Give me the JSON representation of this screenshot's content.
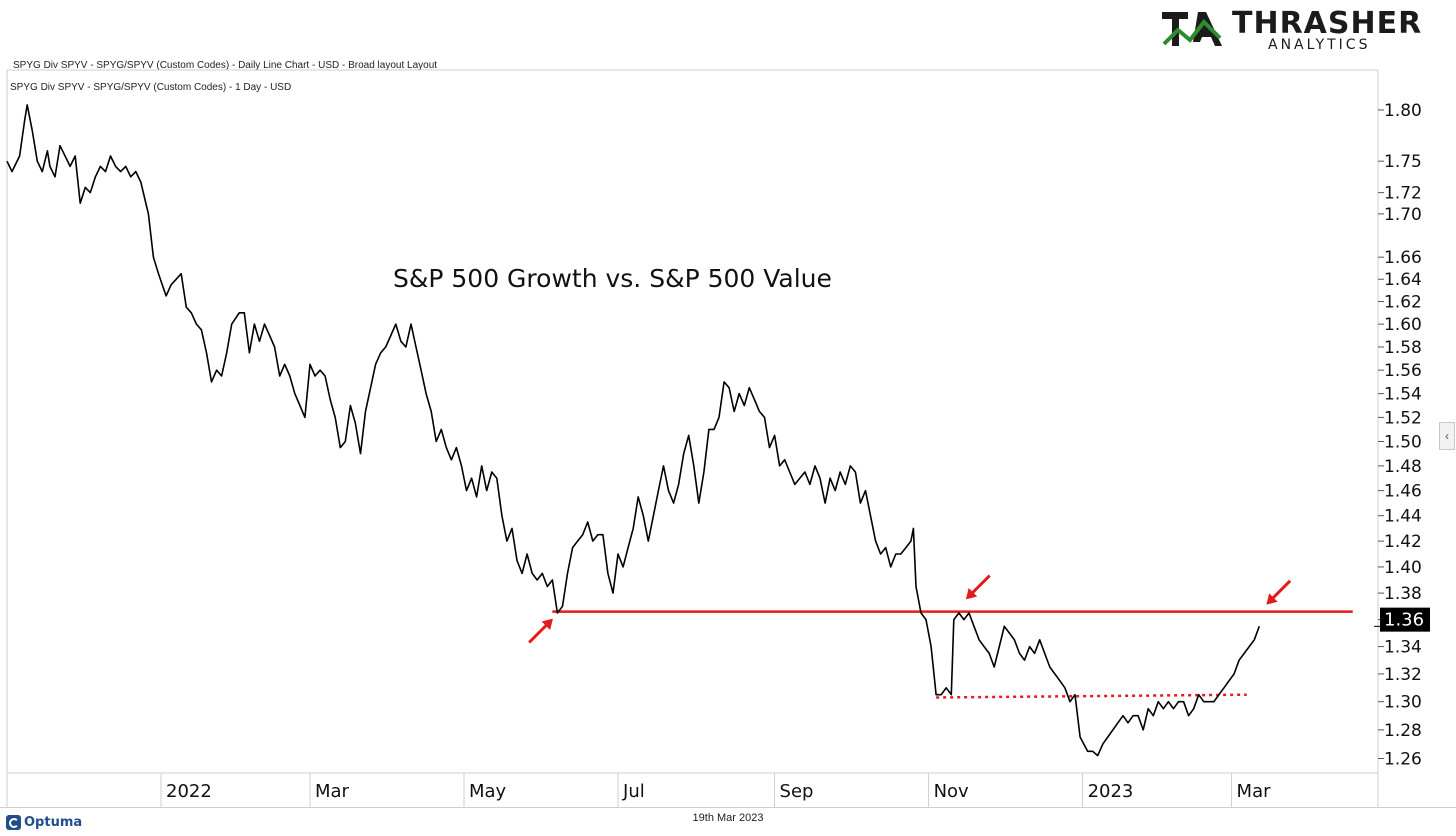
{
  "header": {
    "line1": "SPYG Div SPYV - SPYG/SPYV (Custom Codes) - Daily Line Chart - USD - Broad layout Layout",
    "line2": "SPYG Div SPYV - SPYG/SPYV (Custom Codes) - 1 Day - USD"
  },
  "logo": {
    "word": "THRASHER",
    "sub": "ANALYTICS",
    "colors": {
      "green": "#2e8b2e",
      "dark": "#1b1b1b"
    }
  },
  "footer": {
    "brand": "Optuma",
    "date": "19th Mar 2023"
  },
  "side_tab": {
    "glyph": "‹"
  },
  "chart_data": {
    "type": "line",
    "title": "S&P 500 Growth vs. S&P 500 Value",
    "y_scale": "log",
    "ylim": [
      1.25,
      1.84
    ],
    "yticks": [
      "1.80",
      "1.75",
      "1.72",
      "1.70",
      "1.66",
      "1.64",
      "1.62",
      "1.60",
      "1.58",
      "1.56",
      "1.54",
      "1.52",
      "1.50",
      "1.48",
      "1.46",
      "1.44",
      "1.42",
      "1.40",
      "1.38",
      "1.36",
      "1.34",
      "1.32",
      "1.30",
      "1.28",
      "1.26"
    ],
    "xlim": [
      "2021-11-01",
      "2023-04-28"
    ],
    "xtick_labels": [
      {
        "date": "2022-01-01",
        "label": "2022"
      },
      {
        "date": "2022-03-01",
        "label": "Mar"
      },
      {
        "date": "2022-05-01",
        "label": "May"
      },
      {
        "date": "2022-07-01",
        "label": "Jul"
      },
      {
        "date": "2022-09-01",
        "label": "Sep"
      },
      {
        "date": "2022-11-01",
        "label": "Nov"
      },
      {
        "date": "2023-01-01",
        "label": "2023"
      },
      {
        "date": "2023-03-01",
        "label": "Mar"
      }
    ],
    "last_value": "1.36",
    "colors": {
      "line": "#000000",
      "resistance": "#e31b1b",
      "arrow": "#e31b1b",
      "last_value_box": "#000000"
    },
    "series": [
      {
        "points": [
          [
            "2021-11-01",
            1.75
          ],
          [
            "2021-11-03",
            1.74
          ],
          [
            "2021-11-06",
            1.755
          ],
          [
            "2021-11-08",
            1.79
          ],
          [
            "2021-11-09",
            1.805
          ],
          [
            "2021-11-11",
            1.78
          ],
          [
            "2021-11-13",
            1.75
          ],
          [
            "2021-11-15",
            1.74
          ],
          [
            "2021-11-17",
            1.76
          ],
          [
            "2021-11-18",
            1.745
          ],
          [
            "2021-11-20",
            1.735
          ],
          [
            "2021-11-22",
            1.765
          ],
          [
            "2021-11-24",
            1.755
          ],
          [
            "2021-11-26",
            1.745
          ],
          [
            "2021-11-28",
            1.755
          ],
          [
            "2021-11-30",
            1.71
          ],
          [
            "2021-12-02",
            1.725
          ],
          [
            "2021-12-04",
            1.72
          ],
          [
            "2021-12-06",
            1.735
          ],
          [
            "2021-12-08",
            1.745
          ],
          [
            "2021-12-10",
            1.74
          ],
          [
            "2021-12-12",
            1.755
          ],
          [
            "2021-12-14",
            1.745
          ],
          [
            "2021-12-16",
            1.74
          ],
          [
            "2021-12-18",
            1.745
          ],
          [
            "2021-12-20",
            1.735
          ],
          [
            "2021-12-22",
            1.74
          ],
          [
            "2021-12-24",
            1.73
          ],
          [
            "2021-12-27",
            1.7
          ],
          [
            "2021-12-29",
            1.66
          ],
          [
            "2021-12-31",
            1.645
          ],
          [
            "2022-01-03",
            1.625
          ],
          [
            "2022-01-05",
            1.635
          ],
          [
            "2022-01-07",
            1.64
          ],
          [
            "2022-01-09",
            1.645
          ],
          [
            "2022-01-11",
            1.615
          ],
          [
            "2022-01-13",
            1.61
          ],
          [
            "2022-01-15",
            1.6
          ],
          [
            "2022-01-17",
            1.595
          ],
          [
            "2022-01-19",
            1.575
          ],
          [
            "2022-01-21",
            1.55
          ],
          [
            "2022-01-23",
            1.56
          ],
          [
            "2022-01-25",
            1.555
          ],
          [
            "2022-01-27",
            1.575
          ],
          [
            "2022-01-29",
            1.6
          ],
          [
            "2022-02-01",
            1.61
          ],
          [
            "2022-02-03",
            1.61
          ],
          [
            "2022-02-05",
            1.575
          ],
          [
            "2022-02-07",
            1.6
          ],
          [
            "2022-02-09",
            1.585
          ],
          [
            "2022-02-11",
            1.6
          ],
          [
            "2022-02-13",
            1.59
          ],
          [
            "2022-02-15",
            1.58
          ],
          [
            "2022-02-17",
            1.555
          ],
          [
            "2022-02-19",
            1.565
          ],
          [
            "2022-02-21",
            1.555
          ],
          [
            "2022-02-23",
            1.54
          ],
          [
            "2022-02-25",
            1.53
          ],
          [
            "2022-02-27",
            1.52
          ],
          [
            "2022-03-01",
            1.565
          ],
          [
            "2022-03-03",
            1.555
          ],
          [
            "2022-03-05",
            1.56
          ],
          [
            "2022-03-07",
            1.555
          ],
          [
            "2022-03-09",
            1.535
          ],
          [
            "2022-03-11",
            1.52
          ],
          [
            "2022-03-13",
            1.495
          ],
          [
            "2022-03-15",
            1.5
          ],
          [
            "2022-03-17",
            1.53
          ],
          [
            "2022-03-19",
            1.515
          ],
          [
            "2022-03-21",
            1.49
          ],
          [
            "2022-03-23",
            1.525
          ],
          [
            "2022-03-25",
            1.545
          ],
          [
            "2022-03-27",
            1.565
          ],
          [
            "2022-03-29",
            1.575
          ],
          [
            "2022-03-31",
            1.58
          ],
          [
            "2022-04-02",
            1.59
          ],
          [
            "2022-04-04",
            1.6
          ],
          [
            "2022-04-06",
            1.585
          ],
          [
            "2022-04-08",
            1.58
          ],
          [
            "2022-04-10",
            1.6
          ],
          [
            "2022-04-12",
            1.58
          ],
          [
            "2022-04-14",
            1.56
          ],
          [
            "2022-04-16",
            1.54
          ],
          [
            "2022-04-18",
            1.525
          ],
          [
            "2022-04-20",
            1.5
          ],
          [
            "2022-04-22",
            1.51
          ],
          [
            "2022-04-24",
            1.495
          ],
          [
            "2022-04-26",
            1.485
          ],
          [
            "2022-04-28",
            1.495
          ],
          [
            "2022-04-30",
            1.48
          ],
          [
            "2022-05-02",
            1.46
          ],
          [
            "2022-05-04",
            1.47
          ],
          [
            "2022-05-06",
            1.455
          ],
          [
            "2022-05-08",
            1.48
          ],
          [
            "2022-05-10",
            1.46
          ],
          [
            "2022-05-12",
            1.475
          ],
          [
            "2022-05-14",
            1.47
          ],
          [
            "2022-05-16",
            1.44
          ],
          [
            "2022-05-18",
            1.42
          ],
          [
            "2022-05-20",
            1.43
          ],
          [
            "2022-05-22",
            1.405
          ],
          [
            "2022-05-24",
            1.395
          ],
          [
            "2022-05-26",
            1.41
          ],
          [
            "2022-05-28",
            1.395
          ],
          [
            "2022-05-30",
            1.39
          ],
          [
            "2022-06-01",
            1.395
          ],
          [
            "2022-06-03",
            1.385
          ],
          [
            "2022-06-05",
            1.39
          ],
          [
            "2022-06-07",
            1.365
          ],
          [
            "2022-06-09",
            1.37
          ],
          [
            "2022-06-11",
            1.395
          ],
          [
            "2022-06-13",
            1.415
          ],
          [
            "2022-06-15",
            1.42
          ],
          [
            "2022-06-17",
            1.425
          ],
          [
            "2022-06-19",
            1.435
          ],
          [
            "2022-06-21",
            1.42
          ],
          [
            "2022-06-23",
            1.425
          ],
          [
            "2022-06-25",
            1.425
          ],
          [
            "2022-06-27",
            1.395
          ],
          [
            "2022-06-29",
            1.38
          ],
          [
            "2022-07-01",
            1.41
          ],
          [
            "2022-07-03",
            1.4
          ],
          [
            "2022-07-05",
            1.415
          ],
          [
            "2022-07-07",
            1.43
          ],
          [
            "2022-07-09",
            1.455
          ],
          [
            "2022-07-11",
            1.44
          ],
          [
            "2022-07-13",
            1.42
          ],
          [
            "2022-07-15",
            1.44
          ],
          [
            "2022-07-17",
            1.46
          ],
          [
            "2022-07-19",
            1.48
          ],
          [
            "2022-07-21",
            1.46
          ],
          [
            "2022-07-23",
            1.45
          ],
          [
            "2022-07-25",
            1.465
          ],
          [
            "2022-07-27",
            1.49
          ],
          [
            "2022-07-29",
            1.505
          ],
          [
            "2022-07-31",
            1.48
          ],
          [
            "2022-08-02",
            1.45
          ],
          [
            "2022-08-04",
            1.475
          ],
          [
            "2022-08-06",
            1.51
          ],
          [
            "2022-08-08",
            1.51
          ],
          [
            "2022-08-10",
            1.52
          ],
          [
            "2022-08-12",
            1.55
          ],
          [
            "2022-08-14",
            1.545
          ],
          [
            "2022-08-16",
            1.525
          ],
          [
            "2022-08-18",
            1.54
          ],
          [
            "2022-08-20",
            1.53
          ],
          [
            "2022-08-22",
            1.545
          ],
          [
            "2022-08-24",
            1.535
          ],
          [
            "2022-08-26",
            1.525
          ],
          [
            "2022-08-28",
            1.52
          ],
          [
            "2022-08-30",
            1.495
          ],
          [
            "2022-09-01",
            1.505
          ],
          [
            "2022-09-03",
            1.48
          ],
          [
            "2022-09-05",
            1.485
          ],
          [
            "2022-09-07",
            1.475
          ],
          [
            "2022-09-09",
            1.465
          ],
          [
            "2022-09-11",
            1.47
          ],
          [
            "2022-09-13",
            1.475
          ],
          [
            "2022-09-15",
            1.465
          ],
          [
            "2022-09-17",
            1.48
          ],
          [
            "2022-09-19",
            1.47
          ],
          [
            "2022-09-21",
            1.45
          ],
          [
            "2022-09-23",
            1.47
          ],
          [
            "2022-09-25",
            1.46
          ],
          [
            "2022-09-27",
            1.475
          ],
          [
            "2022-09-29",
            1.465
          ],
          [
            "2022-10-01",
            1.48
          ],
          [
            "2022-10-03",
            1.475
          ],
          [
            "2022-10-05",
            1.45
          ],
          [
            "2022-10-07",
            1.46
          ],
          [
            "2022-10-09",
            1.44
          ],
          [
            "2022-10-11",
            1.42
          ],
          [
            "2022-10-13",
            1.41
          ],
          [
            "2022-10-15",
            1.415
          ],
          [
            "2022-10-17",
            1.4
          ],
          [
            "2022-10-19",
            1.41
          ],
          [
            "2022-10-21",
            1.41
          ],
          [
            "2022-10-23",
            1.415
          ],
          [
            "2022-10-25",
            1.42
          ],
          [
            "2022-10-26",
            1.43
          ],
          [
            "2022-10-27",
            1.385
          ],
          [
            "2022-10-29",
            1.365
          ],
          [
            "2022-10-31",
            1.36
          ],
          [
            "2022-11-02",
            1.34
          ],
          [
            "2022-11-04",
            1.305
          ],
          [
            "2022-11-06",
            1.305
          ],
          [
            "2022-11-08",
            1.31
          ],
          [
            "2022-11-10",
            1.305
          ],
          [
            "2022-11-11",
            1.36
          ],
          [
            "2022-11-13",
            1.365
          ],
          [
            "2022-11-15",
            1.36
          ],
          [
            "2022-11-17",
            1.365
          ],
          [
            "2022-11-19",
            1.355
          ],
          [
            "2022-11-21",
            1.345
          ],
          [
            "2022-11-23",
            1.34
          ],
          [
            "2022-11-25",
            1.335
          ],
          [
            "2022-11-27",
            1.325
          ],
          [
            "2022-11-29",
            1.34
          ],
          [
            "2022-12-01",
            1.355
          ],
          [
            "2022-12-03",
            1.35
          ],
          [
            "2022-12-05",
            1.345
          ],
          [
            "2022-12-07",
            1.335
          ],
          [
            "2022-12-09",
            1.33
          ],
          [
            "2022-12-11",
            1.34
          ],
          [
            "2022-12-13",
            1.335
          ],
          [
            "2022-12-15",
            1.345
          ],
          [
            "2022-12-17",
            1.335
          ],
          [
            "2022-12-19",
            1.325
          ],
          [
            "2022-12-21",
            1.32
          ],
          [
            "2022-12-23",
            1.315
          ],
          [
            "2022-12-25",
            1.31
          ],
          [
            "2022-12-27",
            1.3
          ],
          [
            "2022-12-29",
            1.305
          ],
          [
            "2022-12-31",
            1.275
          ],
          [
            "2023-01-03",
            1.265
          ],
          [
            "2023-01-05",
            1.265
          ],
          [
            "2023-01-07",
            1.262
          ],
          [
            "2023-01-09",
            1.27
          ],
          [
            "2023-01-11",
            1.275
          ],
          [
            "2023-01-13",
            1.28
          ],
          [
            "2023-01-15",
            1.285
          ],
          [
            "2023-01-17",
            1.29
          ],
          [
            "2023-01-19",
            1.285
          ],
          [
            "2023-01-21",
            1.29
          ],
          [
            "2023-01-23",
            1.29
          ],
          [
            "2023-01-25",
            1.28
          ],
          [
            "2023-01-27",
            1.295
          ],
          [
            "2023-01-29",
            1.29
          ],
          [
            "2023-01-31",
            1.3
          ],
          [
            "2023-02-02",
            1.295
          ],
          [
            "2023-02-04",
            1.3
          ],
          [
            "2023-02-06",
            1.295
          ],
          [
            "2023-02-08",
            1.3
          ],
          [
            "2023-02-10",
            1.3
          ],
          [
            "2023-02-12",
            1.29
          ],
          [
            "2023-02-14",
            1.295
          ],
          [
            "2023-02-16",
            1.305
          ],
          [
            "2023-02-18",
            1.3
          ],
          [
            "2023-02-20",
            1.3
          ],
          [
            "2023-02-22",
            1.3
          ],
          [
            "2023-02-24",
            1.305
          ],
          [
            "2023-02-26",
            1.31
          ],
          [
            "2023-02-28",
            1.315
          ],
          [
            "2023-03-02",
            1.32
          ],
          [
            "2023-03-04",
            1.33
          ],
          [
            "2023-03-06",
            1.335
          ],
          [
            "2023-03-08",
            1.34
          ],
          [
            "2023-03-10",
            1.345
          ],
          [
            "2023-03-12",
            1.355
          ]
        ]
      }
    ],
    "annotations": {
      "resistance_level": 1.366,
      "resistance_range": [
        "2022-06-05",
        "2023-04-18"
      ],
      "support_dotted": {
        "start": [
          "2022-11-04",
          1.303
        ],
        "end": [
          "2023-03-07",
          1.305
        ]
      },
      "arrows": [
        {
          "date": "2022-06-08",
          "value": 1.366,
          "from": "lower-left"
        },
        {
          "date": "2022-11-13",
          "value": 1.37,
          "from": "upper-right"
        },
        {
          "date": "2023-03-12",
          "value": 1.366,
          "from": "upper-right"
        }
      ]
    }
  }
}
